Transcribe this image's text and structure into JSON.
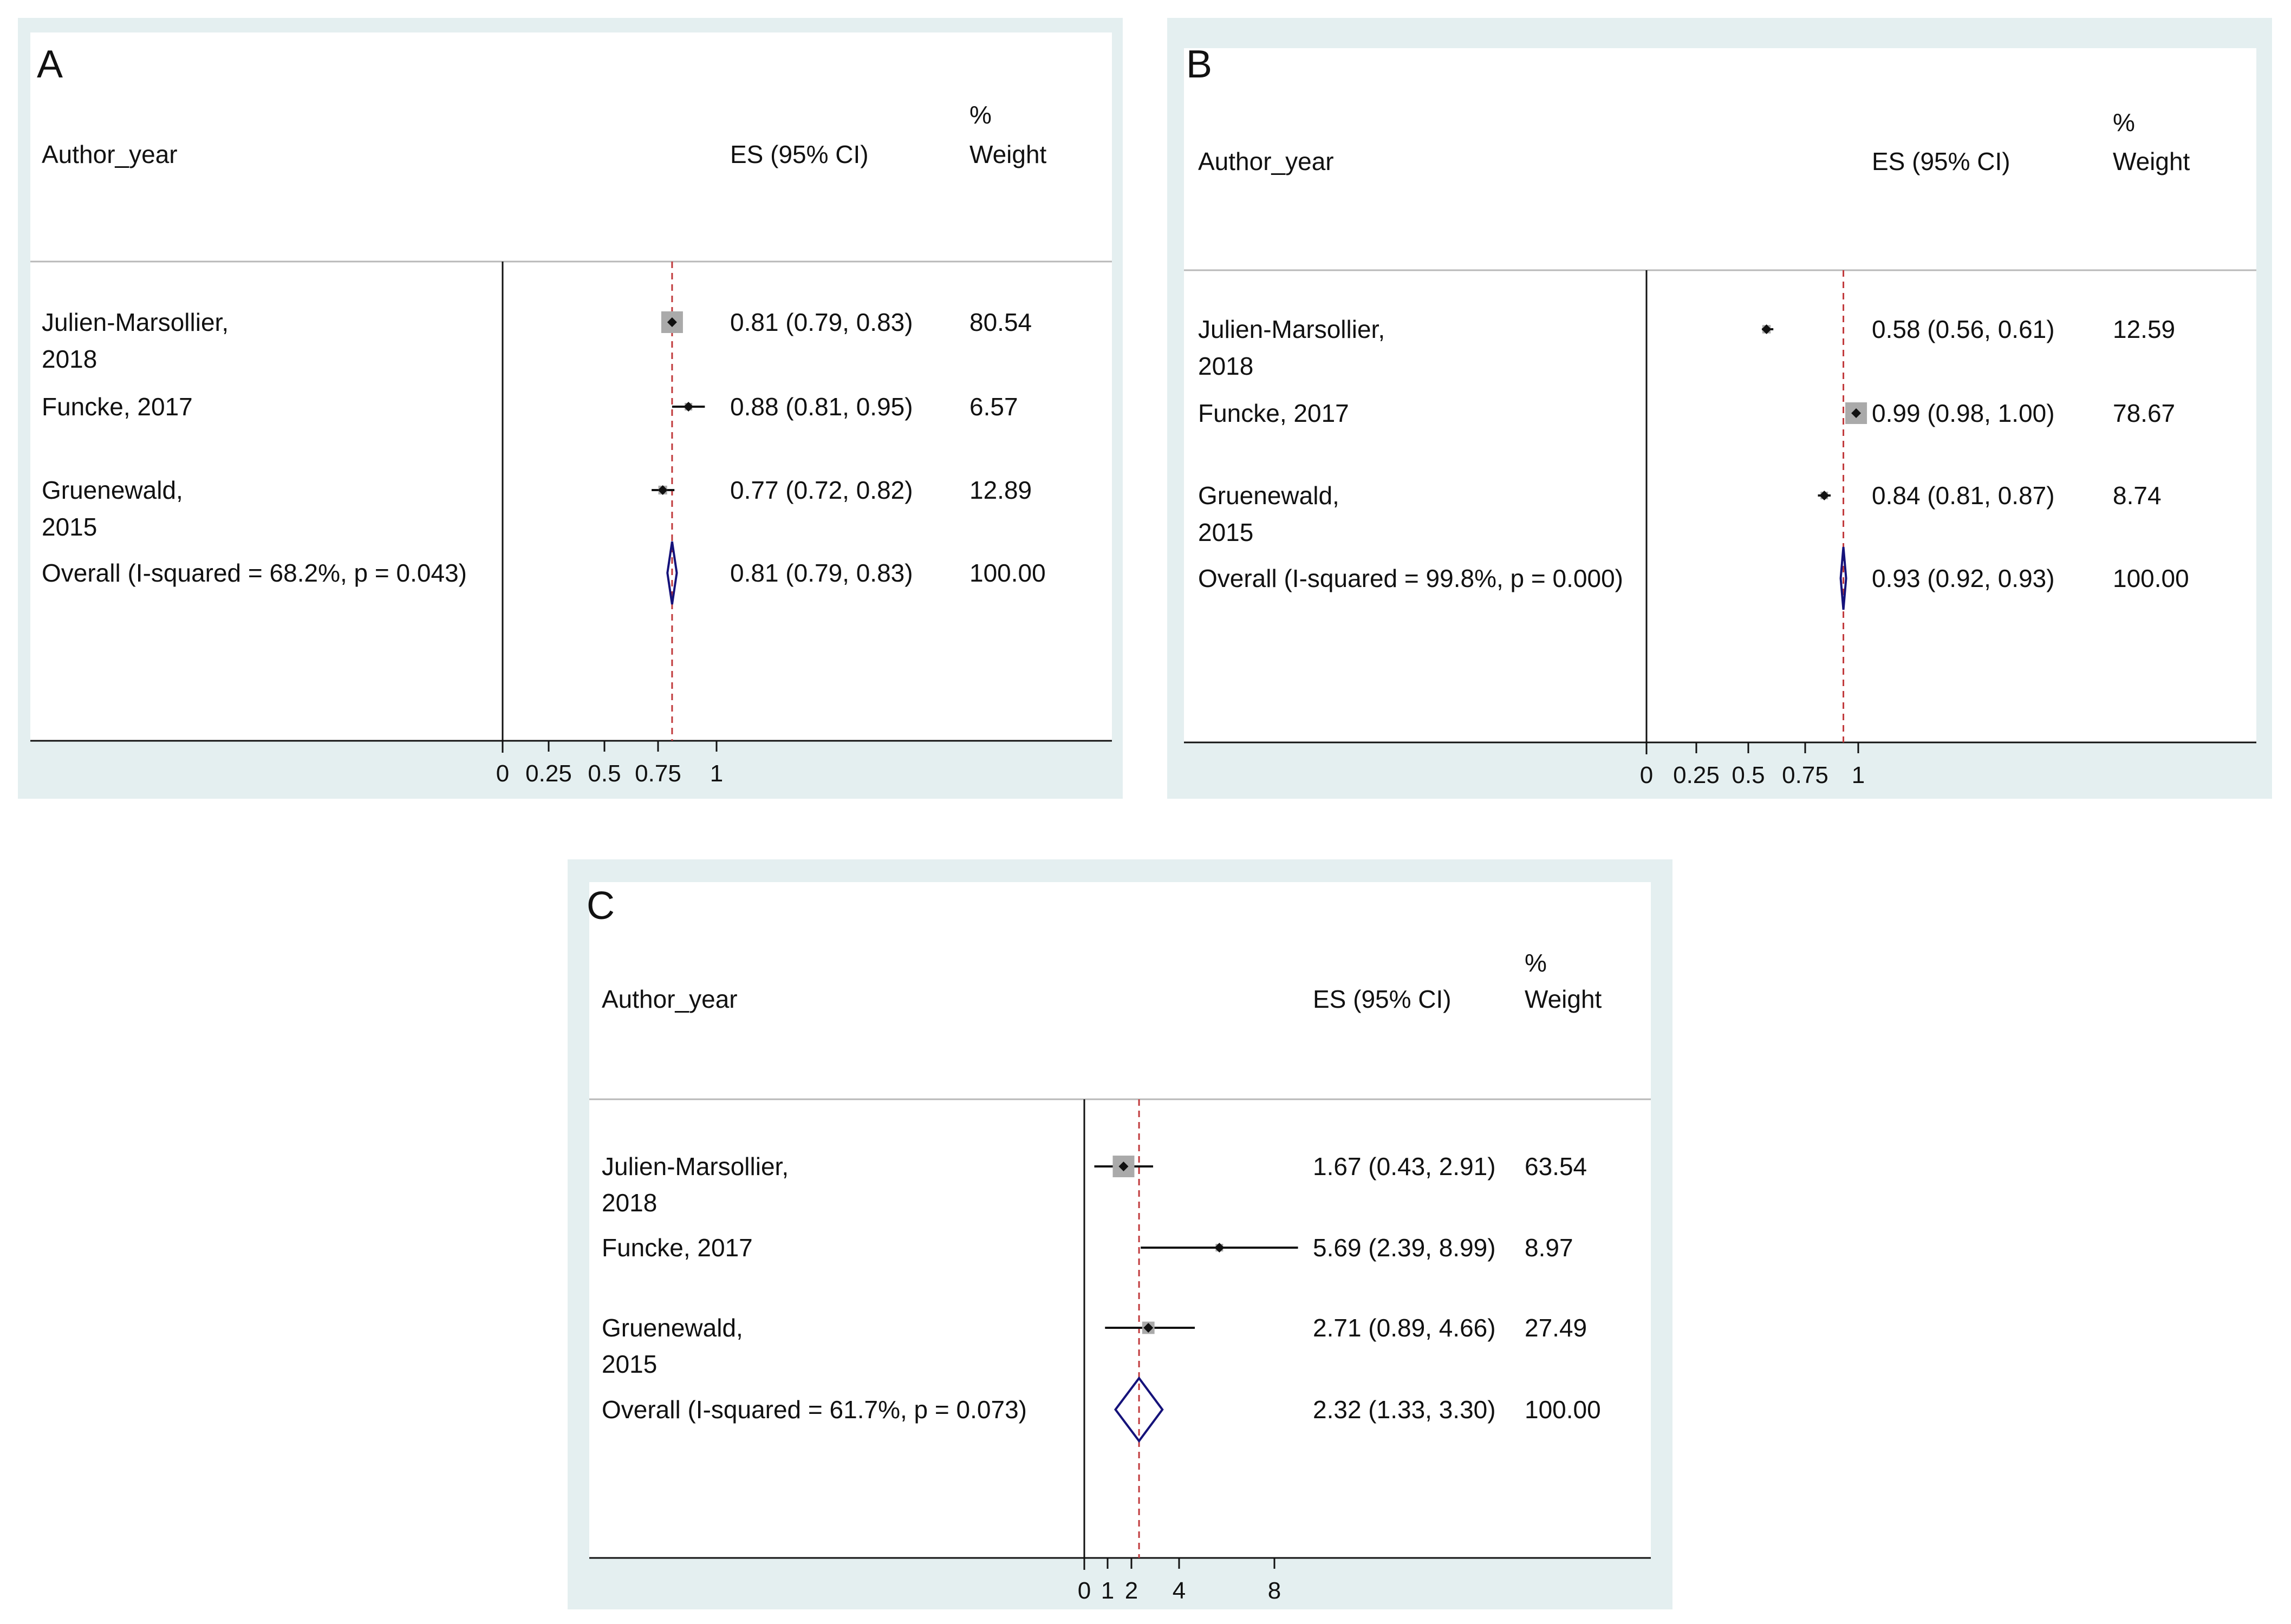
{
  "colors": {
    "frame": "#e4eff0",
    "plot_background": "#ffffff",
    "axis": "#111111",
    "reference_line": "#c0393b",
    "weight_box": "#aaaaaa",
    "point": "#111111",
    "diamond": "#15127a"
  },
  "columns": {
    "author": "Author_year",
    "es": "ES (95% CI)",
    "weight_top": "%",
    "weight_bottom": "Weight"
  },
  "chart_data": [
    {
      "panel": "A",
      "type": "forest",
      "reference_line": 0.81,
      "xticks": [
        "0",
        "0.25",
        "0.5",
        "0.75",
        "1"
      ],
      "grid": false,
      "rows": [
        {
          "label_lines": [
            "Julien-Marsollier,",
            "2018"
          ],
          "es": 0.81,
          "low": 0.79,
          "high": 0.83,
          "es_text": "0.81 (0.79, 0.83)",
          "weight": "80.54"
        },
        {
          "label_lines": [
            "Funcke, 2017"
          ],
          "es": 0.88,
          "low": 0.81,
          "high": 0.95,
          "es_text": "0.88 (0.81, 0.95)",
          "weight": "6.57"
        },
        {
          "label_lines": [
            "Gruenewald,",
            "2015"
          ],
          "es": 0.77,
          "low": 0.72,
          "high": 0.82,
          "es_text": "0.77 (0.72, 0.82)",
          "weight": "12.89"
        }
      ],
      "overall": {
        "label": "Overall  (I-squared = 68.2%, p = 0.043)",
        "es": 0.81,
        "low": 0.79,
        "high": 0.83,
        "es_text": "0.81 (0.79, 0.83)",
        "weight": "100.00"
      }
    },
    {
      "panel": "B",
      "type": "forest",
      "reference_line": 0.93,
      "xticks": [
        "0",
        "0.25",
        "0.5",
        "0.75",
        "1"
      ],
      "grid": false,
      "rows": [
        {
          "label_lines": [
            "Julien-Marsollier,",
            "2018"
          ],
          "es": 0.58,
          "low": 0.56,
          "high": 0.61,
          "es_text": "0.58 (0.56, 0.61)",
          "weight": "12.59"
        },
        {
          "label_lines": [
            "Funcke, 2017"
          ],
          "es": 0.99,
          "low": 0.98,
          "high": 1.0,
          "es_text": "0.99 (0.98, 1.00)",
          "weight": "78.67"
        },
        {
          "label_lines": [
            "Gruenewald,",
            "2015"
          ],
          "es": 0.84,
          "low": 0.81,
          "high": 0.87,
          "es_text": "0.84 (0.81, 0.87)",
          "weight": "8.74"
        }
      ],
      "overall": {
        "label": "Overall  (I-squared = 99.8%, p = 0.000)",
        "es": 0.93,
        "low": 0.92,
        "high": 0.93,
        "es_text": "0.93 (0.92, 0.93)",
        "weight": "100.00"
      }
    },
    {
      "panel": "C",
      "type": "forest",
      "reference_line": 2.32,
      "xticks": [
        "0",
        "1",
        "2",
        "4",
        "8"
      ],
      "grid": false,
      "rows": [
        {
          "label_lines": [
            "Julien-Marsollier,",
            "2018"
          ],
          "es": 1.67,
          "low": 0.43,
          "high": 2.91,
          "es_text": "1.67 (0.43, 2.91)",
          "weight": "63.54"
        },
        {
          "label_lines": [
            "Funcke, 2017"
          ],
          "es": 5.69,
          "low": 2.39,
          "high": 8.99,
          "es_text": "5.69 (2.39, 8.99)",
          "weight": "8.97"
        },
        {
          "label_lines": [
            "Gruenewald,",
            "2015"
          ],
          "es": 2.71,
          "low": 0.89,
          "high": 4.66,
          "es_text": "2.71 (0.89, 4.66)",
          "weight": "27.49"
        }
      ],
      "overall": {
        "label": "Overall  (I-squared = 61.7%, p = 0.073)",
        "es": 2.32,
        "low": 1.33,
        "high": 3.3,
        "es_text": "2.32 (1.33, 3.30)",
        "weight": "100.00"
      }
    }
  ]
}
